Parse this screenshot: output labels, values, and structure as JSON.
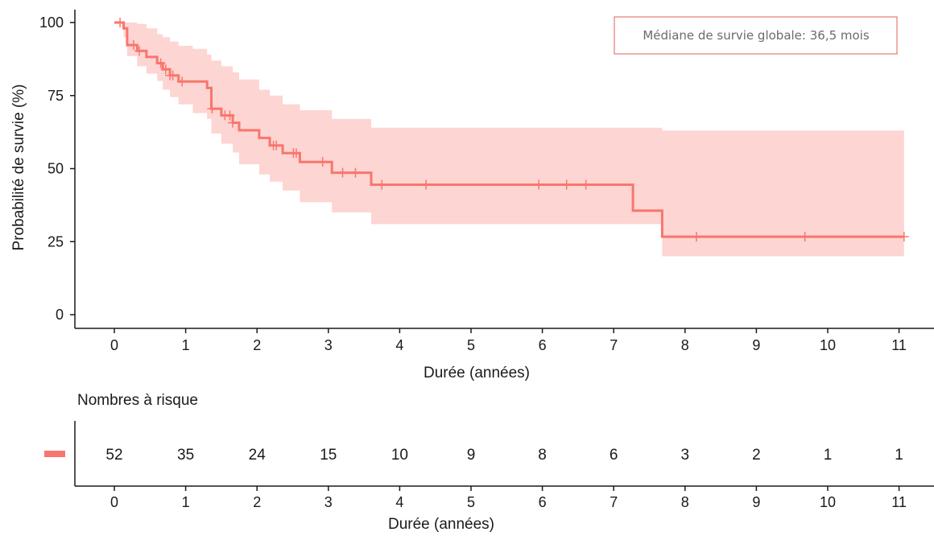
{
  "chart_data": [
    {
      "type": "line",
      "subtype": "kaplan-meier",
      "xlabel": "Durée (années)",
      "ylabel": "Probabilité de survie (%)",
      "xlim": [
        0,
        11
      ],
      "ylim": [
        0,
        100
      ],
      "xticks": [
        "0",
        "1",
        "2",
        "3",
        "4",
        "5",
        "6",
        "7",
        "8",
        "9",
        "10",
        "11"
      ],
      "yticks": [
        "0",
        "25",
        "50",
        "75",
        "100"
      ],
      "grid": false,
      "line_color": "#f8766d",
      "band_color": "#fdd5d3",
      "annotation": "Médiane de survie globale: 36,5 mois",
      "annotation_border_color": "#e0605a",
      "step": {
        "x": [
          0,
          0.13,
          0.18,
          0.32,
          0.45,
          0.6,
          0.68,
          0.78,
          0.9,
          1.1,
          1.3,
          1.36,
          1.5,
          1.66,
          1.75,
          2.03,
          2.18,
          2.36,
          2.6,
          3.05,
          3.6,
          7.27,
          7.68,
          11.07
        ],
        "y": [
          100,
          98,
          92.3,
          90.3,
          88.2,
          86.1,
          84,
          81.9,
          79.8,
          79.8,
          77.6,
          70.5,
          68.2,
          65.7,
          63.1,
          60.5,
          57.9,
          55.3,
          52.3,
          48.6,
          44.5,
          35.6,
          26.7,
          26.7
        ],
        "lower": [
          100,
          95,
          88.5,
          85,
          82.5,
          80,
          77,
          74.5,
          72,
          69,
          67,
          62,
          58.5,
          55.5,
          51.5,
          48,
          45.5,
          42.5,
          38.5,
          35,
          31,
          31,
          20,
          12
        ],
        "upper": [
          100,
          100,
          100,
          99.5,
          98,
          96,
          95,
          93.5,
          92,
          91,
          89,
          87,
          85,
          83,
          80.5,
          77,
          75,
          72,
          70,
          67,
          64,
          64,
          63,
          60
        ]
      },
      "censor_times": [
        0.08,
        0.27,
        0.35,
        0.65,
        0.72,
        0.78,
        0.82,
        0.95,
        1.37,
        1.55,
        1.62,
        1.66,
        2.23,
        2.27,
        2.51,
        2.55,
        2.92,
        3.2,
        3.38,
        3.75,
        4.37,
        5.95,
        6.34,
        6.61,
        8.16,
        9.68,
        11.07
      ]
    },
    {
      "type": "table",
      "title": "Nombres à risque",
      "xlabel": "Durée (années)",
      "times": [
        "0",
        "1",
        "2",
        "3",
        "4",
        "5",
        "6",
        "7",
        "8",
        "9",
        "10",
        "11"
      ],
      "values": [
        "52",
        "35",
        "24",
        "15",
        "10",
        "9",
        "8",
        "6",
        "3",
        "2",
        "1",
        "1"
      ],
      "strata_color": "#f8766d"
    }
  ]
}
